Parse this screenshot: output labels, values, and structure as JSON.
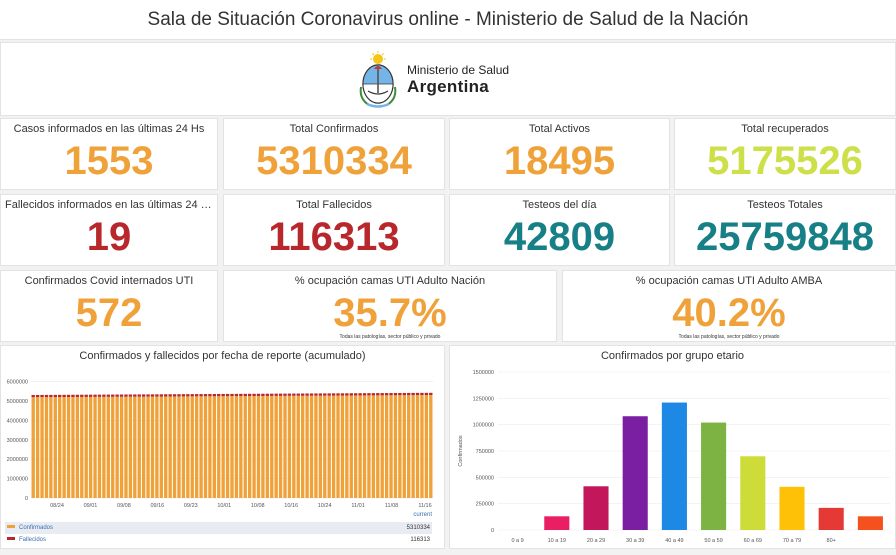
{
  "header": {
    "title": "Sala de Situación Coronavirus online - Ministerio de Salud de la Nación"
  },
  "logo": {
    "line1": "Ministerio de Salud",
    "line2": "Argentina"
  },
  "kpis": {
    "casos24": {
      "label": "Casos informados en las últimas 24 Hs",
      "value": "1553"
    },
    "total_confirmados": {
      "label": "Total Confirmados",
      "value": "5310334"
    },
    "total_activos": {
      "label": "Total Activos",
      "value": "18495"
    },
    "total_recuperados": {
      "label": "Total recuperados",
      "value": "5175526"
    },
    "fallecidos24": {
      "label": "Fallecidos informados en las últimas 24 Hs",
      "value": "19"
    },
    "total_fallecidos": {
      "label": "Total Fallecidos",
      "value": "116313"
    },
    "testeos_dia": {
      "label": "Testeos del día",
      "value": "42809"
    },
    "testeos_totales": {
      "label": "Testeos Totales",
      "value": "25759848"
    },
    "internados_uti": {
      "label": "Confirmados Covid internados UTI",
      "value": "572"
    },
    "ocupacion_nacion": {
      "label": "% ocupación camas UTI Adulto Nación",
      "value": "35.7%",
      "note": "Todas las patologías, sector público y privado"
    },
    "ocupacion_amba": {
      "label": "% ocupación camas UTI Adulto AMBA",
      "value": "40.2%",
      "note": "Todas las patologías, sector público y privado"
    }
  },
  "chart_data": [
    {
      "type": "bar",
      "title": "Confirmados y fallecidos por fecha de reporte (acumulado)",
      "x_ticks": [
        "08/24",
        "09/01",
        "09/08",
        "09/16",
        "09/23",
        "10/01",
        "10/08",
        "10/16",
        "10/24",
        "11/01",
        "11/08",
        "11/16"
      ],
      "y_ticks": [
        "0",
        "1000000",
        "2000000",
        "3000000",
        "4000000",
        "5000000",
        "6000000"
      ],
      "ylim": [
        0,
        6500000
      ],
      "days": 91,
      "confirmados_start": 5200000,
      "confirmados_end": 5310334,
      "fallecidos_start": 113600,
      "fallecidos_end": 116313,
      "legend_header": "current",
      "series": [
        {
          "name": "Confirmados",
          "color": "#f0a23a",
          "current": "5310334"
        },
        {
          "name": "Fallecidos",
          "color": "#b8272c",
          "current": "116313"
        }
      ]
    },
    {
      "type": "bar",
      "title": "Confirmados por grupo etario",
      "ylabel": "Confirmados",
      "categories": [
        "0 a 9",
        "10 a 19",
        "20 a 29",
        "30 a 39",
        "40 a 49",
        "50 a 59",
        "60 a 69",
        "70 a 79",
        "80+",
        ""
      ],
      "values": [
        0,
        130000,
        415000,
        1080000,
        1210000,
        1020000,
        700000,
        410000,
        210000,
        130000
      ],
      "colors": [
        "#d81b60",
        "#e91e63",
        "#c2185b",
        "#7b1fa2",
        "#1e88e5",
        "#7cb342",
        "#cddc39",
        "#ffc107",
        "#e53935",
        "#f4511e"
      ],
      "y_ticks": [
        "0",
        "250000",
        "500000",
        "750000",
        "1000000",
        "1250000",
        "1500000"
      ],
      "ylim": [
        0,
        1500000
      ]
    }
  ]
}
